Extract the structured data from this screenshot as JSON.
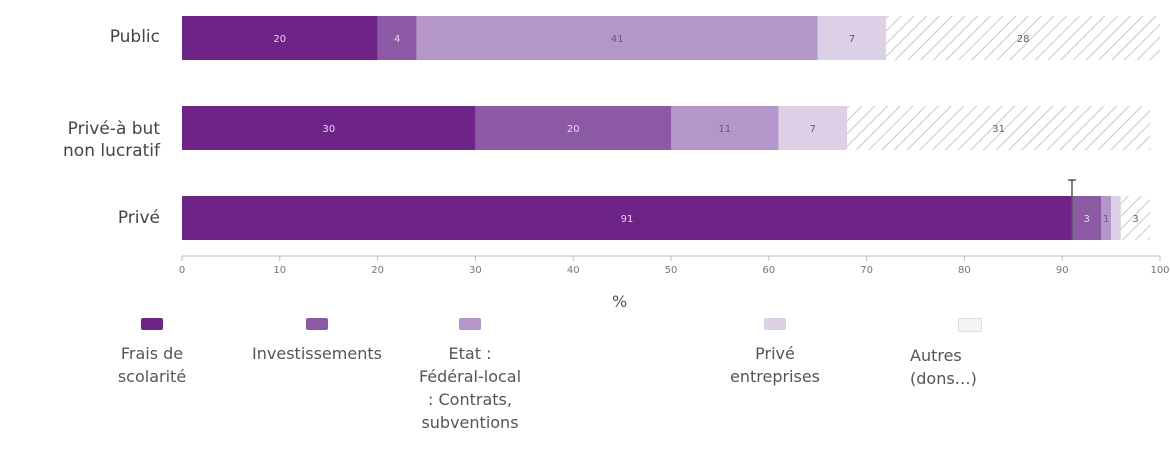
{
  "chart_data": {
    "type": "bar",
    "orientation": "horizontal",
    "stacked": true,
    "title": "",
    "xlabel": "%",
    "ylabel": "",
    "xlim": [
      0,
      100
    ],
    "x_ticks": [
      "0",
      "10",
      "20",
      "30",
      "40",
      "50",
      "60",
      "70",
      "80",
      "90",
      "100"
    ],
    "categories": [
      "Public",
      "Privé-à but\nnon lucratif",
      "Privé"
    ],
    "series": [
      {
        "name": "Frais de\nscolarité",
        "color": "#6e2386",
        "pattern": "solid",
        "values": [
          20,
          30,
          91
        ],
        "labels": [
          "20",
          "30",
          "91"
        ]
      },
      {
        "name": "Investissements",
        "color": "#8c5aa4",
        "pattern": "solid",
        "values": [
          4,
          20,
          3
        ],
        "labels": [
          "4",
          "20",
          "3"
        ]
      },
      {
        "name": "Etat :\nFédéral-local\n: Contrats,\nsubventions",
        "color": "#b596c9",
        "pattern": "solid",
        "values": [
          41,
          11,
          1
        ],
        "labels": [
          "41",
          "11",
          "1"
        ]
      },
      {
        "name": "Privé\nentreprises",
        "color": "#dcd0e6",
        "pattern": "solid",
        "values": [
          7,
          7,
          1
        ],
        "labels": [
          "7",
          "7",
          ""
        ]
      },
      {
        "name": "Autres\n(dons…)",
        "color": "#ffffff",
        "pattern": "hatch",
        "values": [
          28,
          31,
          3
        ],
        "labels": [
          "28",
          "31",
          "3"
        ]
      }
    ],
    "grid": false,
    "legend_position": "bottom"
  }
}
